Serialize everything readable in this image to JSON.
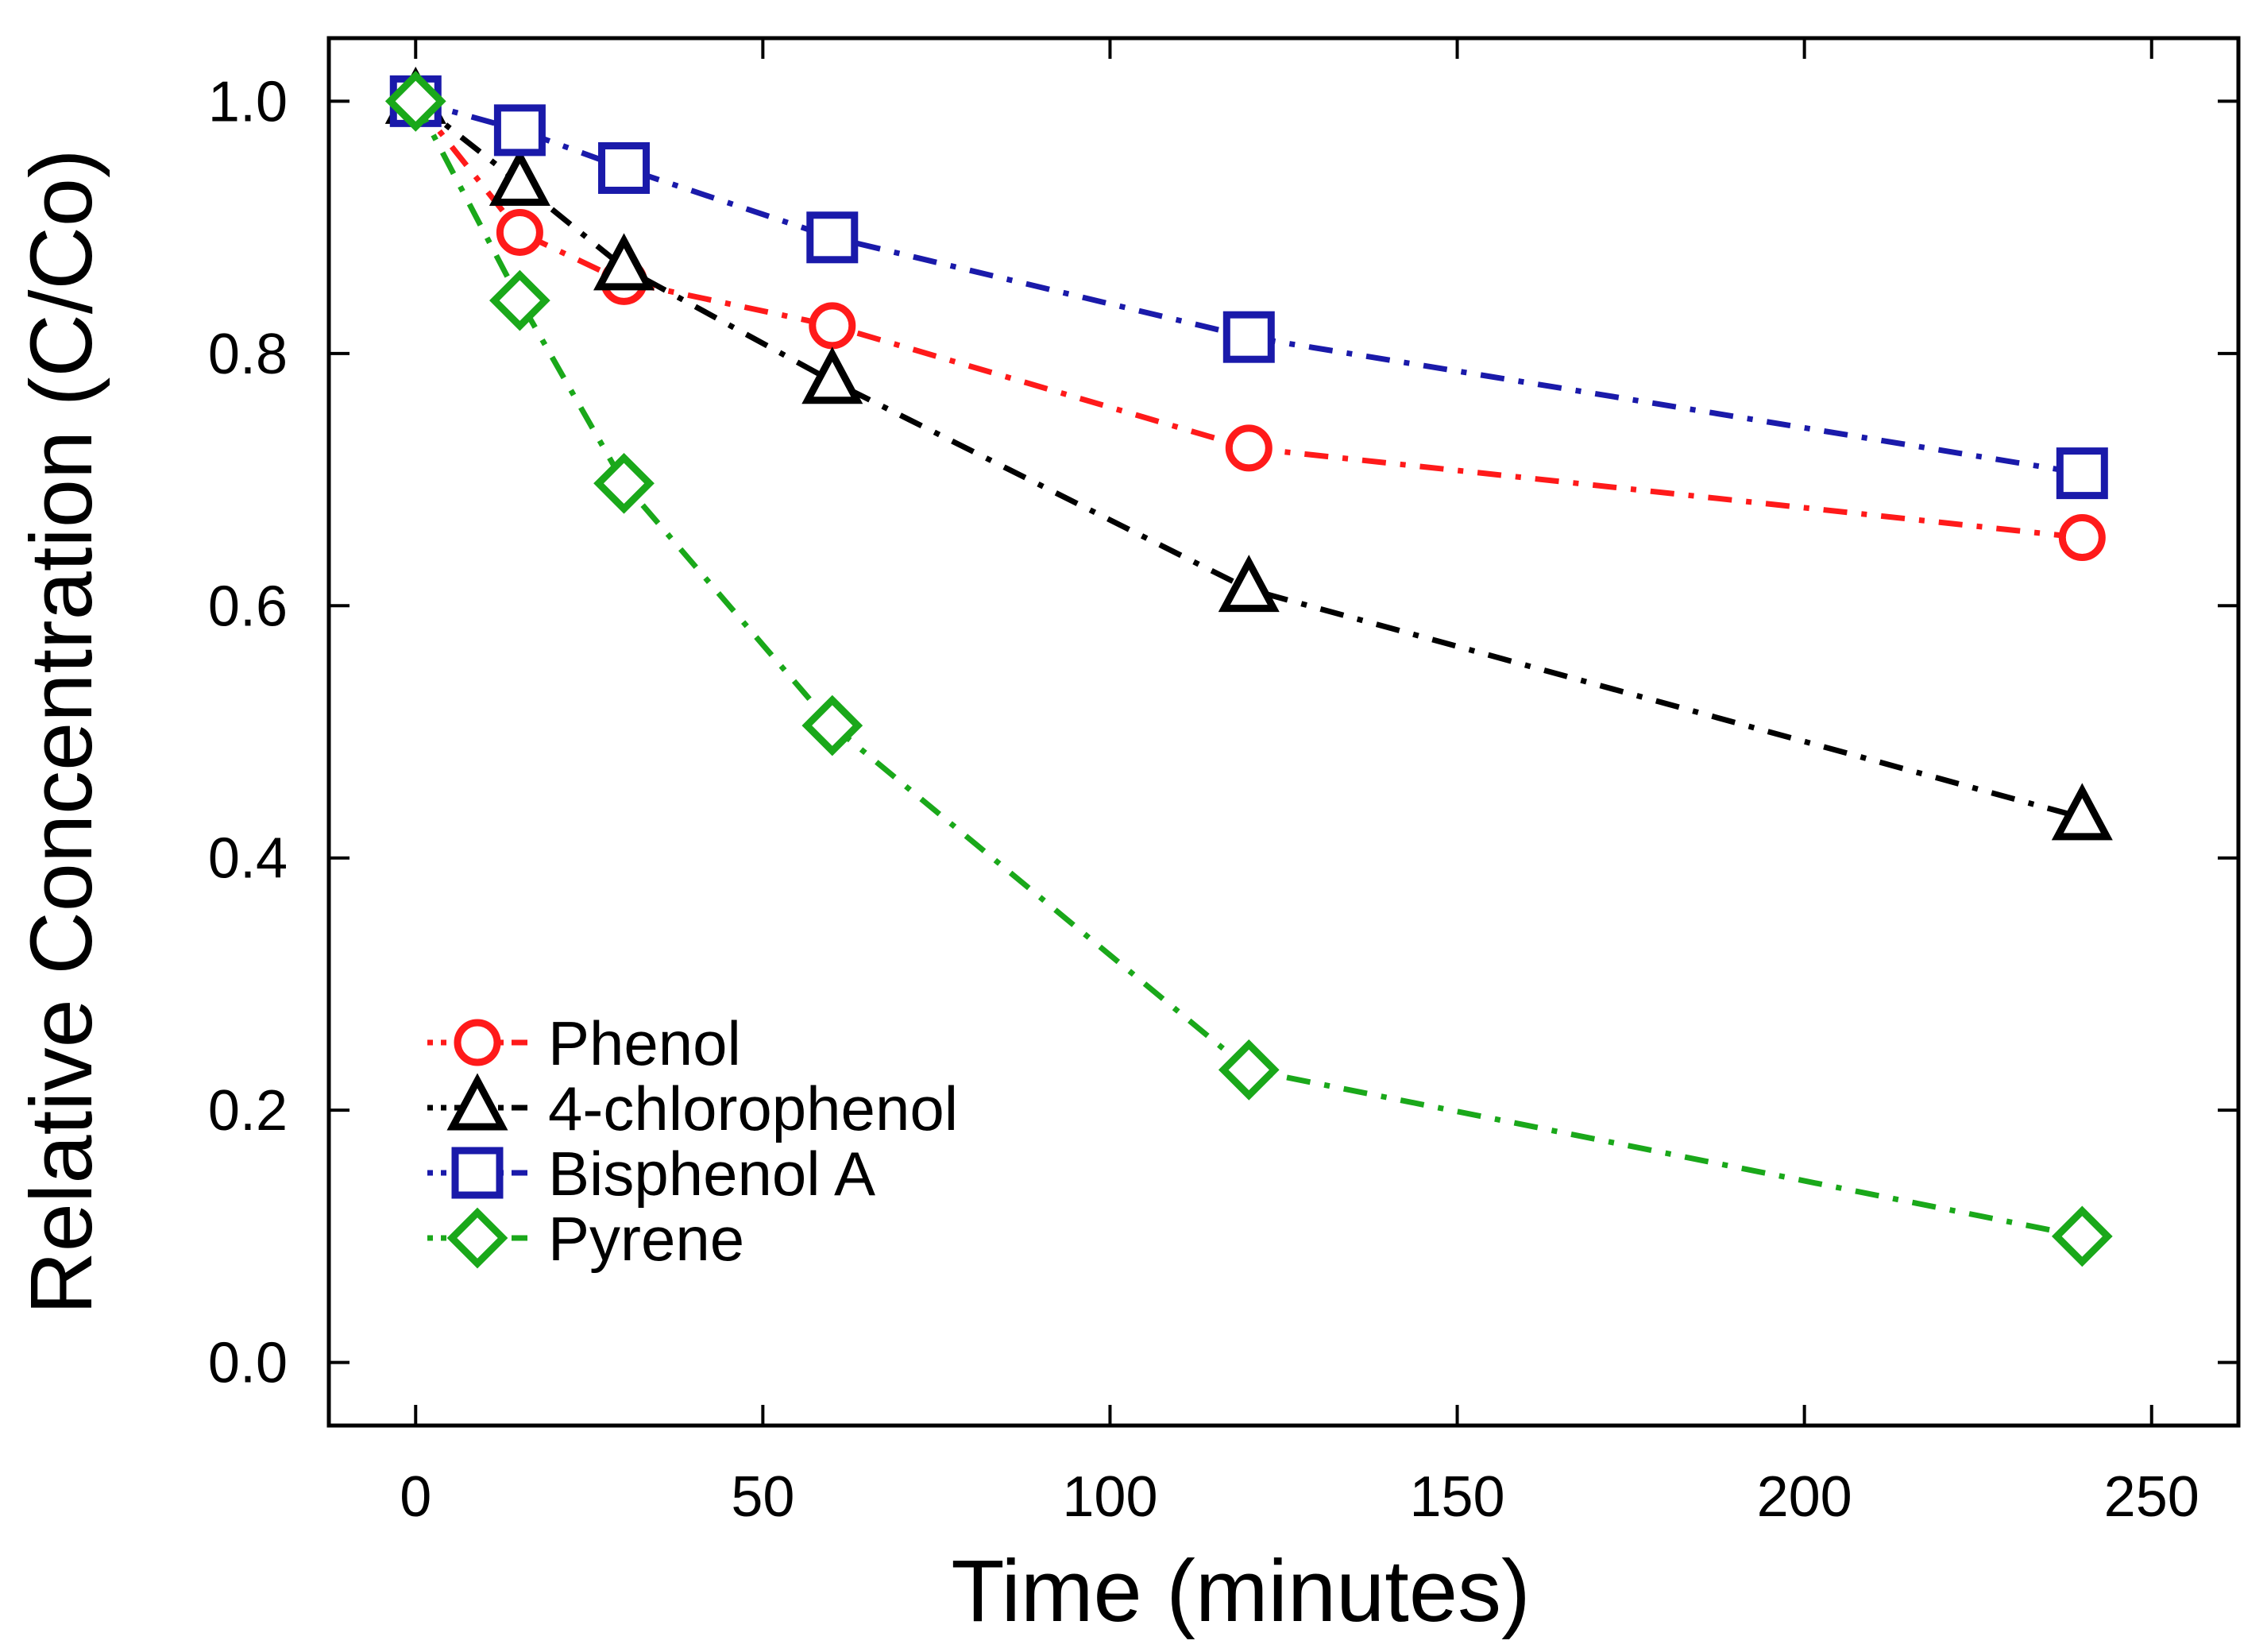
{
  "chart_data": {
    "type": "line",
    "title": "",
    "xlabel": "Time (minutes)",
    "ylabel": "Relative Concentration (C/Co)",
    "xlim": [
      -12.5,
      262.5
    ],
    "ylim": [
      -0.05,
      1.05
    ],
    "x_ticks": [
      0,
      50,
      100,
      150,
      200,
      250
    ],
    "x_tick_labels": [
      "0",
      "50",
      "100",
      "150",
      "200",
      "250"
    ],
    "y_ticks": [
      0.0,
      0.2,
      0.4,
      0.6,
      0.8,
      1.0
    ],
    "y_tick_labels": [
      "0.0",
      "0.2",
      "0.4",
      "0.6",
      "0.8",
      "1.0"
    ],
    "grid": false,
    "legend_position": "bottom-left",
    "x": [
      0,
      15,
      30,
      60,
      120,
      240
    ],
    "series": [
      {
        "name": "Phenol",
        "color": "#ff1a1a",
        "marker": "circle",
        "values": [
          1.0,
          0.896,
          0.857,
          0.822,
          0.725,
          0.654
        ]
      },
      {
        "name": "4-chlorophenol",
        "color": "#000000",
        "marker": "triangle",
        "values": [
          1.0,
          0.935,
          0.868,
          0.778,
          0.613,
          0.432
        ]
      },
      {
        "name": "Bisphenol A",
        "color": "#1a1aaa",
        "marker": "square",
        "values": [
          1.0,
          0.977,
          0.947,
          0.892,
          0.813,
          0.705
        ]
      },
      {
        "name": "Pyrene",
        "color": "#1aa81a",
        "marker": "diamond",
        "values": [
          1.0,
          0.842,
          0.697,
          0.505,
          0.232,
          0.1
        ]
      }
    ]
  }
}
